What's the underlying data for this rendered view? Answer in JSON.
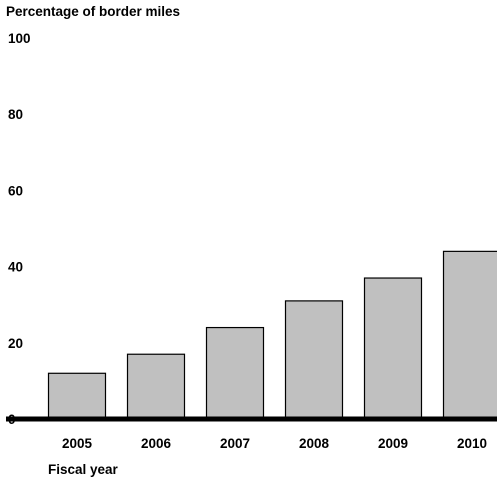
{
  "chart_data": {
    "type": "bar",
    "title": "",
    "ylabel": "Percentage of border miles",
    "xlabel": "Fiscal year",
    "categories": [
      "2005",
      "2006",
      "2007",
      "2008",
      "2009",
      "2010"
    ],
    "values": [
      12,
      17,
      24,
      31,
      37,
      44
    ],
    "ylim": [
      0,
      100
    ],
    "yticks": [
      "0",
      "20",
      "40",
      "60",
      "80",
      "100"
    ],
    "grid": false,
    "legend": "none",
    "bar_color": "#c0c0c0",
    "bar_edge_color": "#000000"
  }
}
